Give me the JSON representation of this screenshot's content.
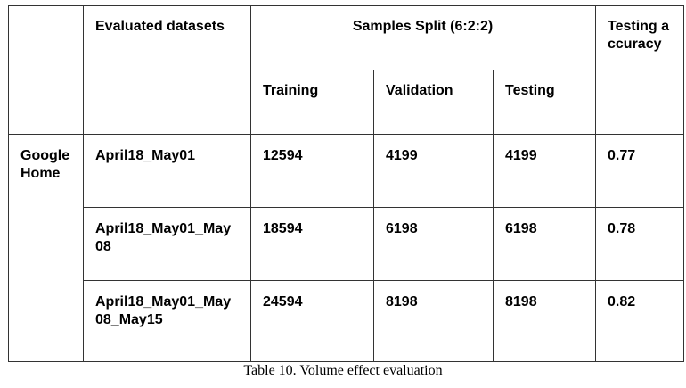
{
  "table": {
    "header": {
      "dataset": "Evaluated datasets",
      "split": "Samples Split (6:2:2)",
      "accuracy": "Testing accuracy"
    },
    "subheader": [
      "Training",
      "Validation",
      "Testing"
    ],
    "group": "Google Home",
    "rows": [
      [
        "April18_May01",
        "12594",
        "4199",
        "4199",
        "0.77"
      ],
      [
        "April18_May01_May08",
        "18594",
        "6198",
        "6198",
        "0.78"
      ],
      [
        "April18_May01_May08_May15",
        "24594",
        "8198",
        "8198",
        "0.82"
      ]
    ],
    "caption": "Table 10. Volume effect evaluation"
  }
}
